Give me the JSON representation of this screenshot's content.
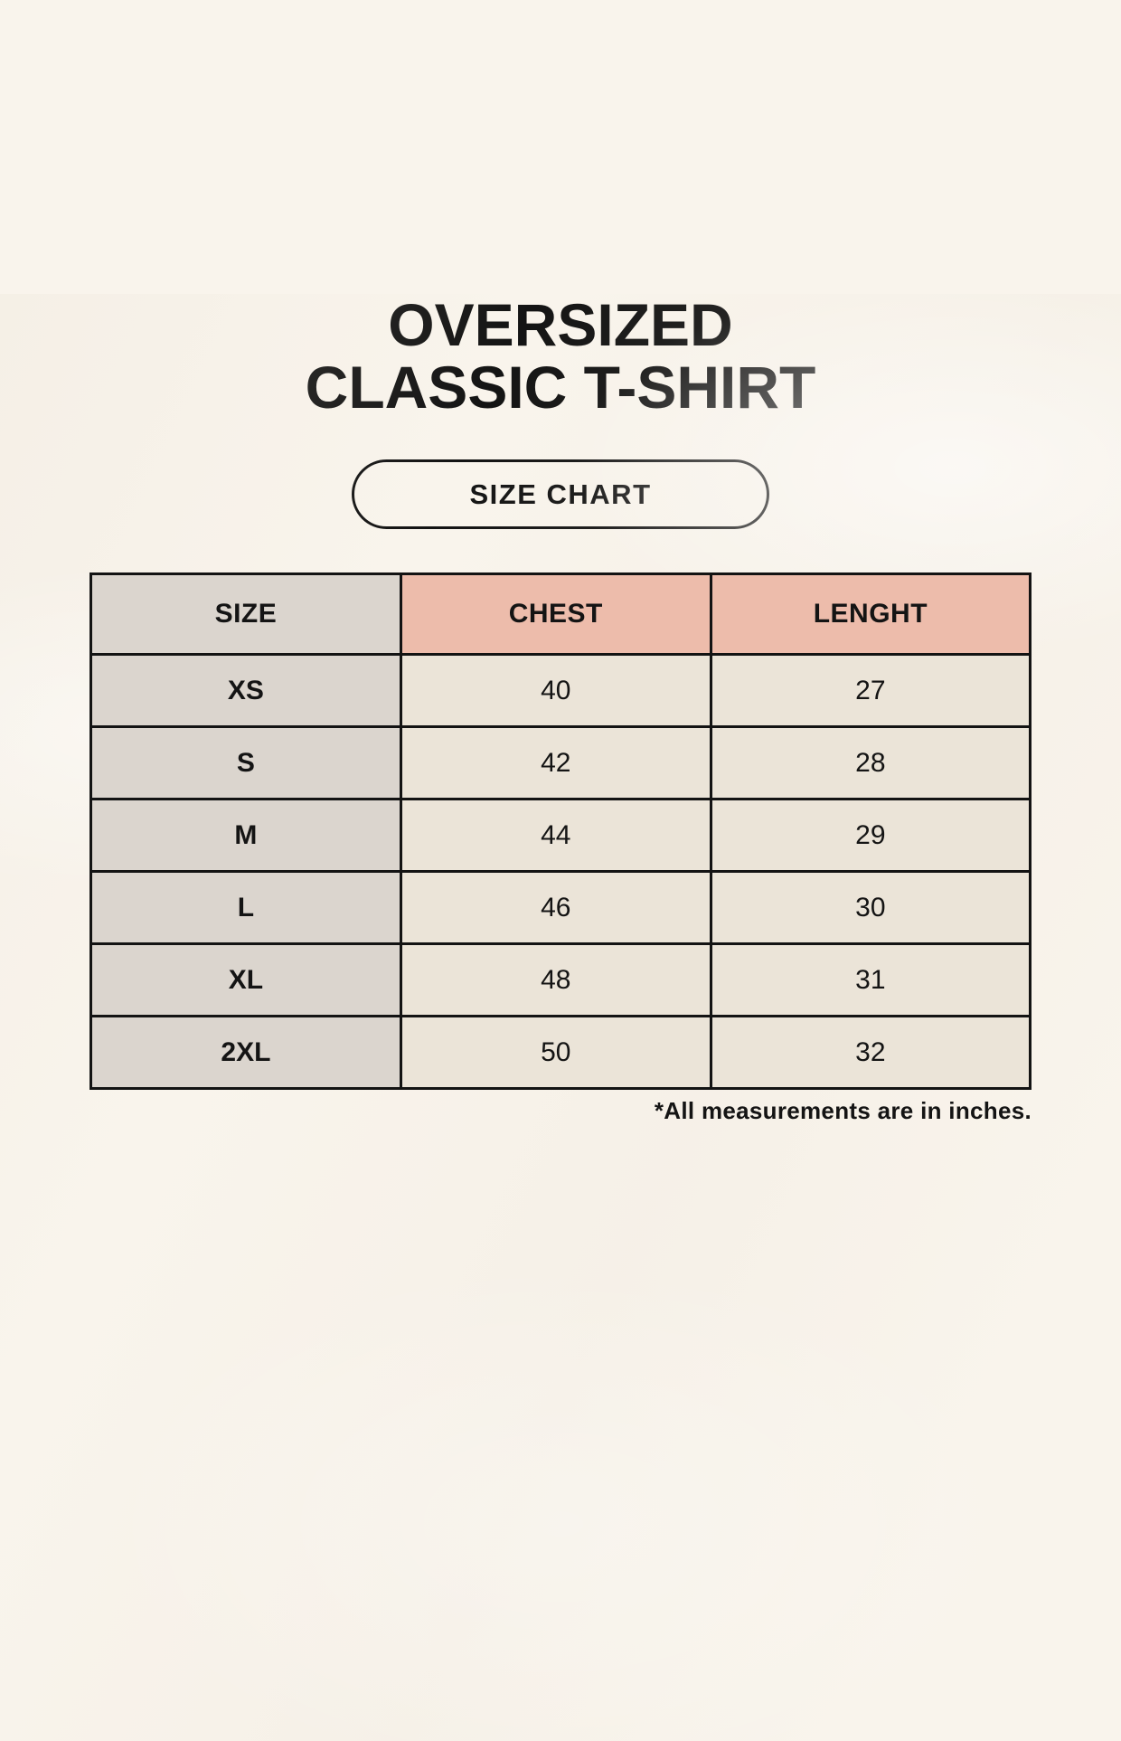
{
  "header": {
    "title_line1": "OVERSIZED",
    "title_line2": "CLASSIC T-SHIRT",
    "badge_label": "SIZE CHART"
  },
  "chart_data": {
    "type": "table",
    "title": "OVERSIZED CLASSIC T-SHIRT — SIZE CHART",
    "columns": [
      "SIZE",
      "CHEST",
      "LENGHT"
    ],
    "rows": [
      [
        "XS",
        "40",
        "27"
      ],
      [
        "S",
        "42",
        "28"
      ],
      [
        "M",
        "44",
        "29"
      ],
      [
        "L",
        "46",
        "30"
      ],
      [
        "XL",
        "48",
        "31"
      ],
      [
        "2XL",
        "50",
        "32"
      ]
    ],
    "units": "inches"
  },
  "footnote": "*All measurements are in inches.",
  "colors": {
    "background": "#f9f4ec",
    "size_column_bg": "#dbd5ce",
    "header_accent_bg": "#edbcab",
    "data_cell_bg": "#ebe4d8",
    "border": "#131313",
    "text": "#141414"
  }
}
